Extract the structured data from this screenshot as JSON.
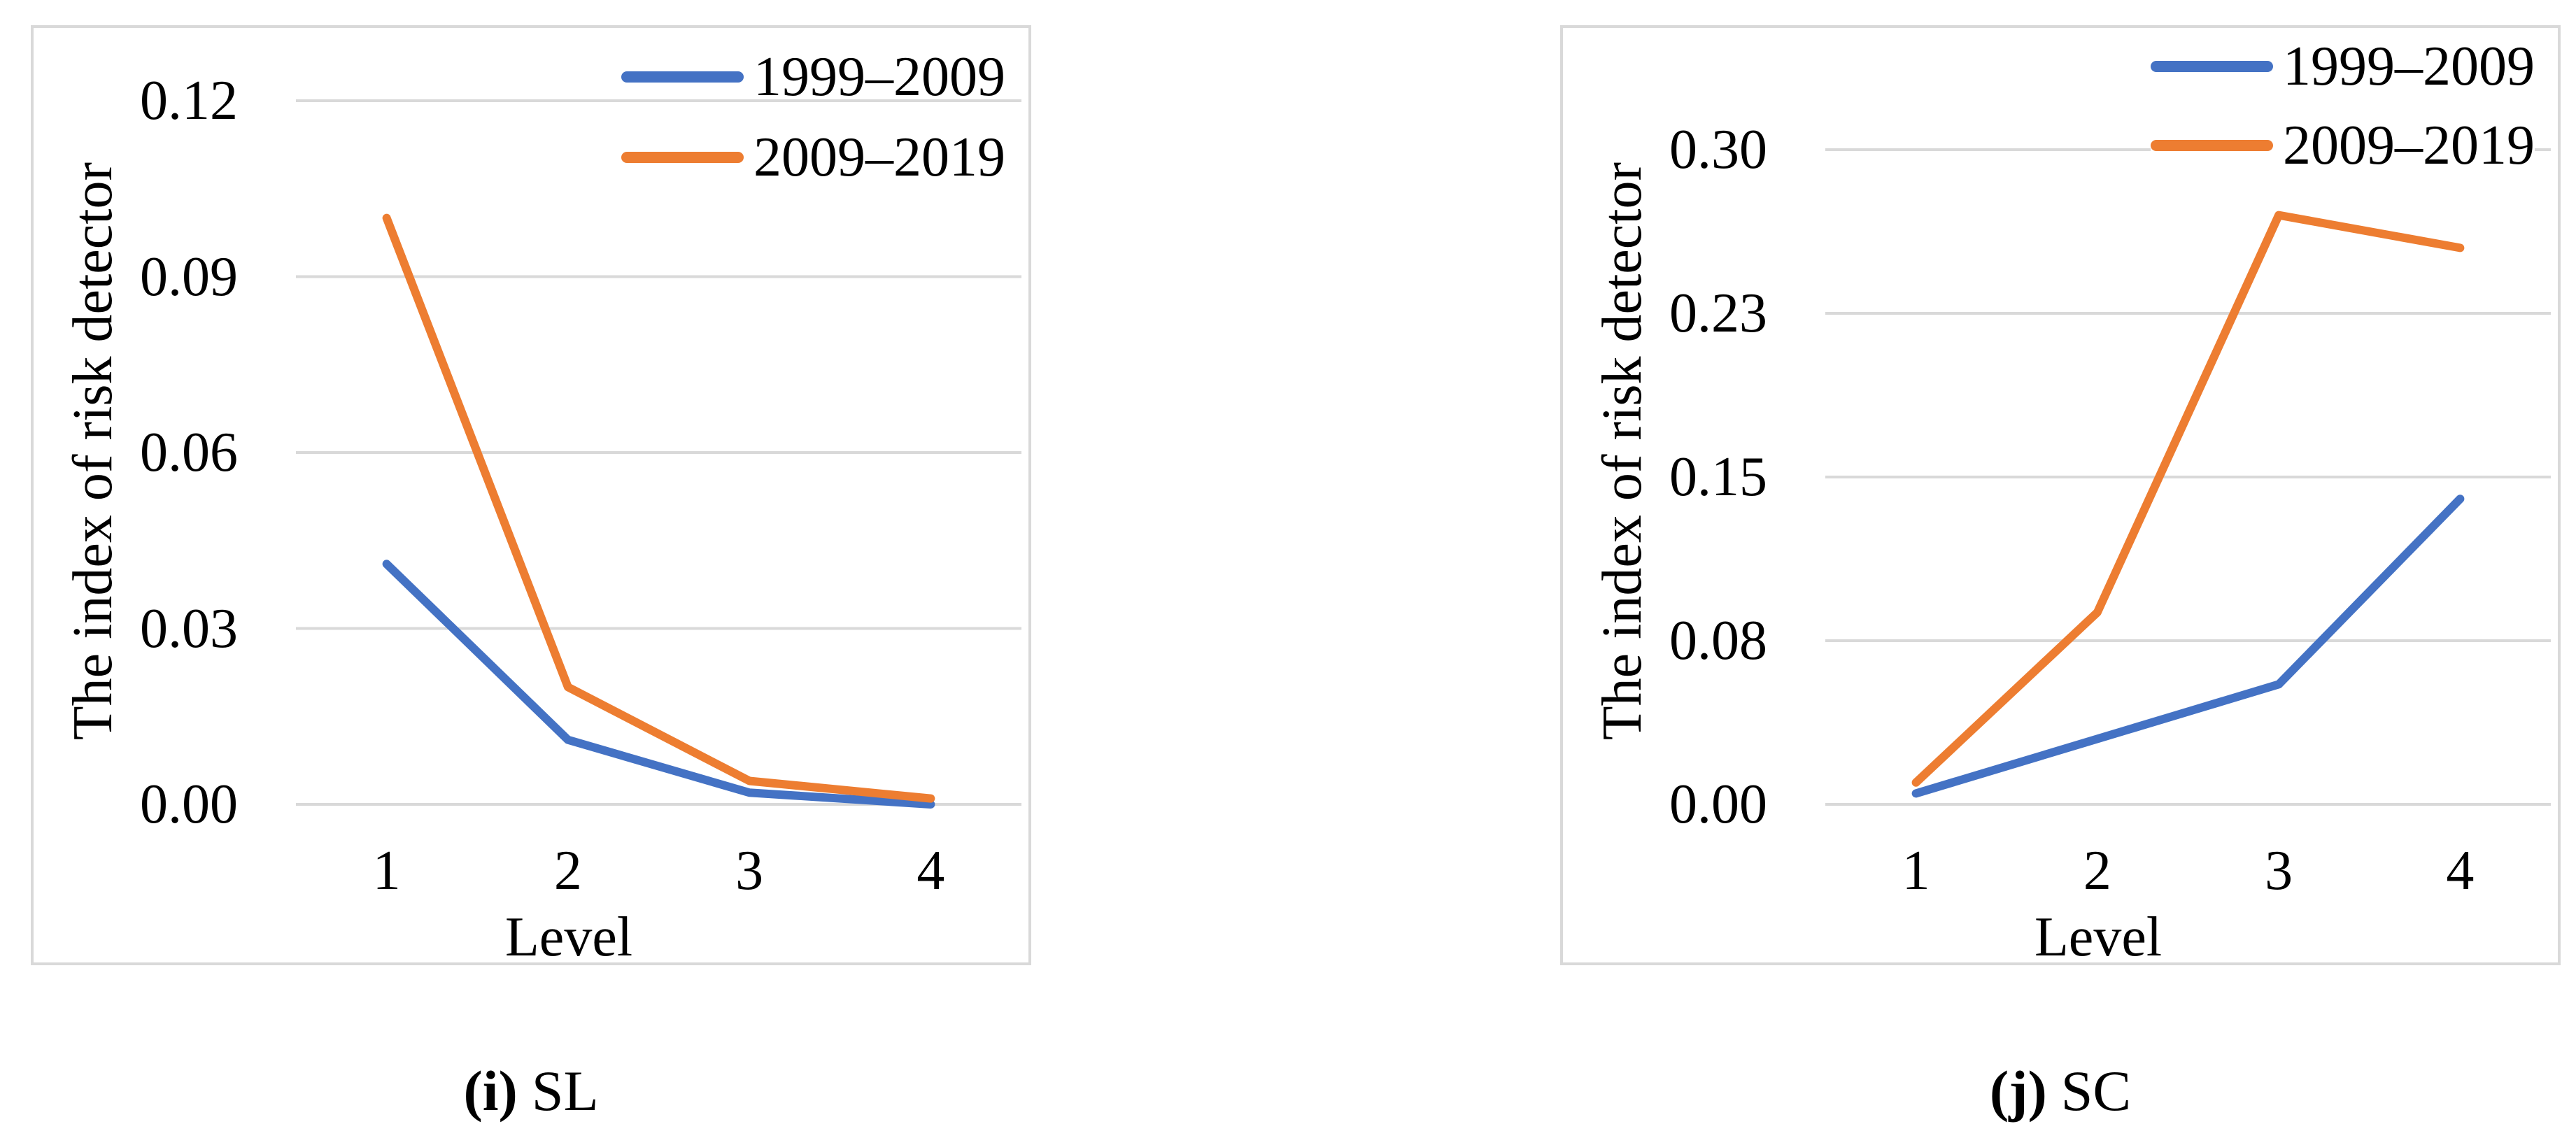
{
  "figure": {
    "captions": [
      {
        "bold": "(i)",
        "label": "SL"
      },
      {
        "bold": "(j)",
        "label": "SC"
      }
    ],
    "colors": {
      "series_blue": "#4472C4",
      "series_orange": "#ED7D31",
      "gridline": "#D9D9D9",
      "panel_border": "#D9D9D9",
      "text": "#000000"
    }
  },
  "chart_data": [
    {
      "type": "line",
      "title": "(i) SL",
      "xlabel": "Level",
      "ylabel": "The index of risk detector",
      "categories": [
        1,
        2,
        3,
        4
      ],
      "x_tick_labels": [
        "1",
        "2",
        "3",
        "4"
      ],
      "ylim": [
        0,
        0.12
      ],
      "y_tick_values": [
        0.12,
        0.09,
        0.06,
        0.03,
        0.0
      ],
      "y_tick_labels": [
        "0.12",
        "0.09",
        "0.06",
        "0.03",
        "0.00"
      ],
      "grid": true,
      "legend_position": "top-right",
      "series": [
        {
          "name": "1999–2009",
          "color": "#4472C4",
          "values": [
            0.041,
            0.011,
            0.002,
            0.0
          ]
        },
        {
          "name": "2009–2019",
          "color": "#ED7D31",
          "values": [
            0.1,
            0.02,
            0.004,
            0.001
          ]
        }
      ]
    },
    {
      "type": "line",
      "title": "(j) SC",
      "xlabel": "Level",
      "ylabel": "The index of risk detector",
      "categories": [
        1,
        2,
        3,
        4
      ],
      "x_tick_labels": [
        "1",
        "2",
        "3",
        "4"
      ],
      "ylim": [
        0,
        0.3
      ],
      "y_tick_values": [
        0.3,
        0.225,
        0.15,
        0.075,
        0.0
      ],
      "y_tick_labels": [
        "0.30",
        "0.23",
        "0.15",
        "0.08",
        "0.00"
      ],
      "grid": true,
      "legend_position": "top-right",
      "series": [
        {
          "name": "1999–2009",
          "color": "#4472C4",
          "values": [
            0.005,
            0.03,
            0.055,
            0.14
          ]
        },
        {
          "name": "2009–2019",
          "color": "#ED7D31",
          "values": [
            0.01,
            0.088,
            0.27,
            0.255
          ]
        }
      ]
    }
  ]
}
